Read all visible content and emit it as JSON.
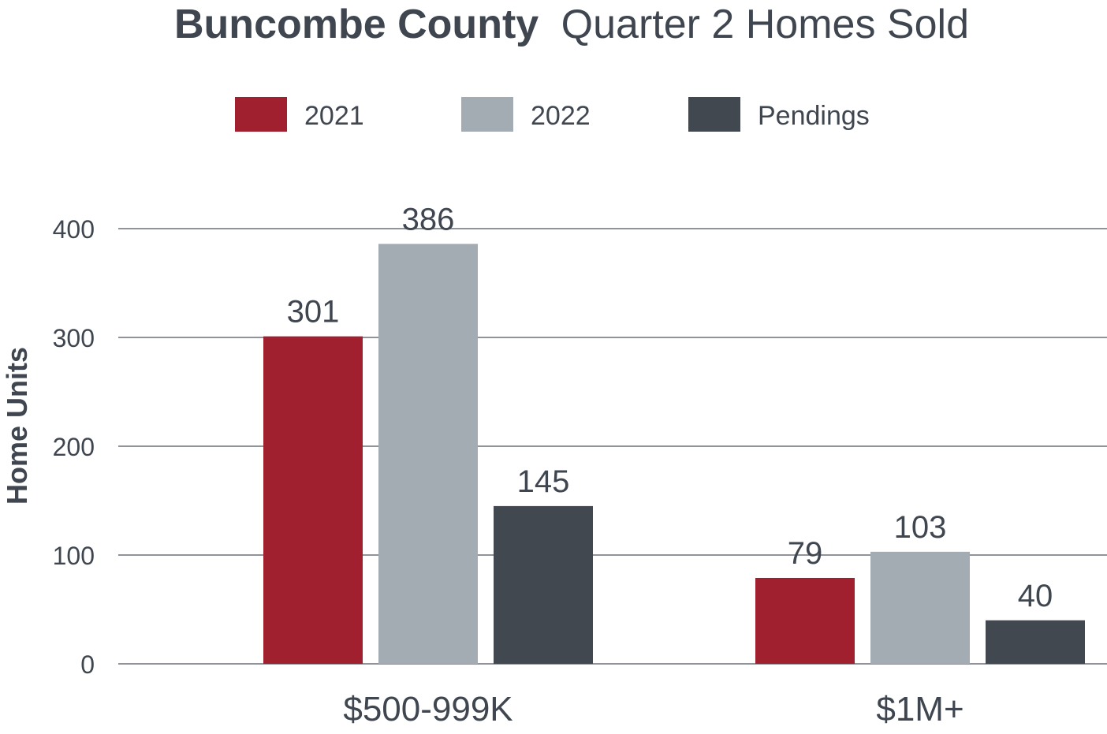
{
  "chart_data": {
    "type": "bar",
    "title_bold": "Buncombe County",
    "title_rest": "Quarter 2 Homes Sold",
    "ylabel": "Home Units",
    "xlabel": "",
    "categories": [
      "$500-999K",
      "$1M+"
    ],
    "ylim": [
      0,
      400
    ],
    "yticks": [
      0,
      100,
      200,
      300,
      400
    ],
    "grid": true,
    "legend_position": "top-center",
    "series": [
      {
        "name": "2021",
        "color": "#a02030",
        "values": [
          301,
          79
        ]
      },
      {
        "name": "2022",
        "color": "#a3acb2",
        "values": [
          386,
          103
        ]
      },
      {
        "name": "Pendings",
        "color": "#414850",
        "values": [
          145,
          40
        ]
      }
    ]
  }
}
